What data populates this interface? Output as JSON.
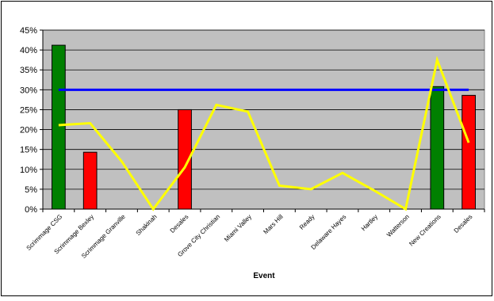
{
  "chart_data": {
    "type": "bar",
    "title": "",
    "xlabel": "Event",
    "ylabel": "",
    "ylim": [
      0,
      45
    ],
    "ytick_values": [
      0,
      5,
      10,
      15,
      20,
      25,
      30,
      35,
      40,
      45
    ],
    "ytick_labels": [
      "0%",
      "5%",
      "10%",
      "15%",
      "20%",
      "25%",
      "30%",
      "35%",
      "40%",
      "45%"
    ],
    "grid": true,
    "legend": "none",
    "plot_background": "#c0c0c0",
    "categories": [
      "Scrimmage CSG",
      "Scrimmage Bexley",
      "Scrimmage Granville",
      "Shakinah",
      "Desales",
      "Grove City Christian",
      "Miami Valley",
      "Mars Hill",
      "Ready",
      "Delaware Hayes",
      "Hartley",
      "Watterson",
      "New Creations",
      "Desales"
    ],
    "series": [
      {
        "kind": "bar",
        "values": [
          41.2,
          14.3,
          null,
          null,
          25.0,
          null,
          null,
          null,
          null,
          null,
          null,
          null,
          30.8,
          28.6
        ],
        "colors": [
          "#008000",
          "#ff0000",
          null,
          null,
          "#ff0000",
          null,
          null,
          null,
          null,
          null,
          null,
          null,
          "#008000",
          "#ff0000"
        ]
      },
      {
        "kind": "line",
        "color": "#0000ff",
        "values": [
          30,
          30,
          30,
          30,
          30,
          30,
          30,
          30,
          30,
          30,
          30,
          30,
          30,
          30
        ]
      },
      {
        "kind": "line",
        "color": "#ffff00",
        "values": [
          21.1,
          21.6,
          12,
          0,
          10.5,
          26.2,
          24.5,
          5.9,
          5,
          9.1,
          4.7,
          0,
          37.5,
          16.7
        ]
      }
    ]
  }
}
